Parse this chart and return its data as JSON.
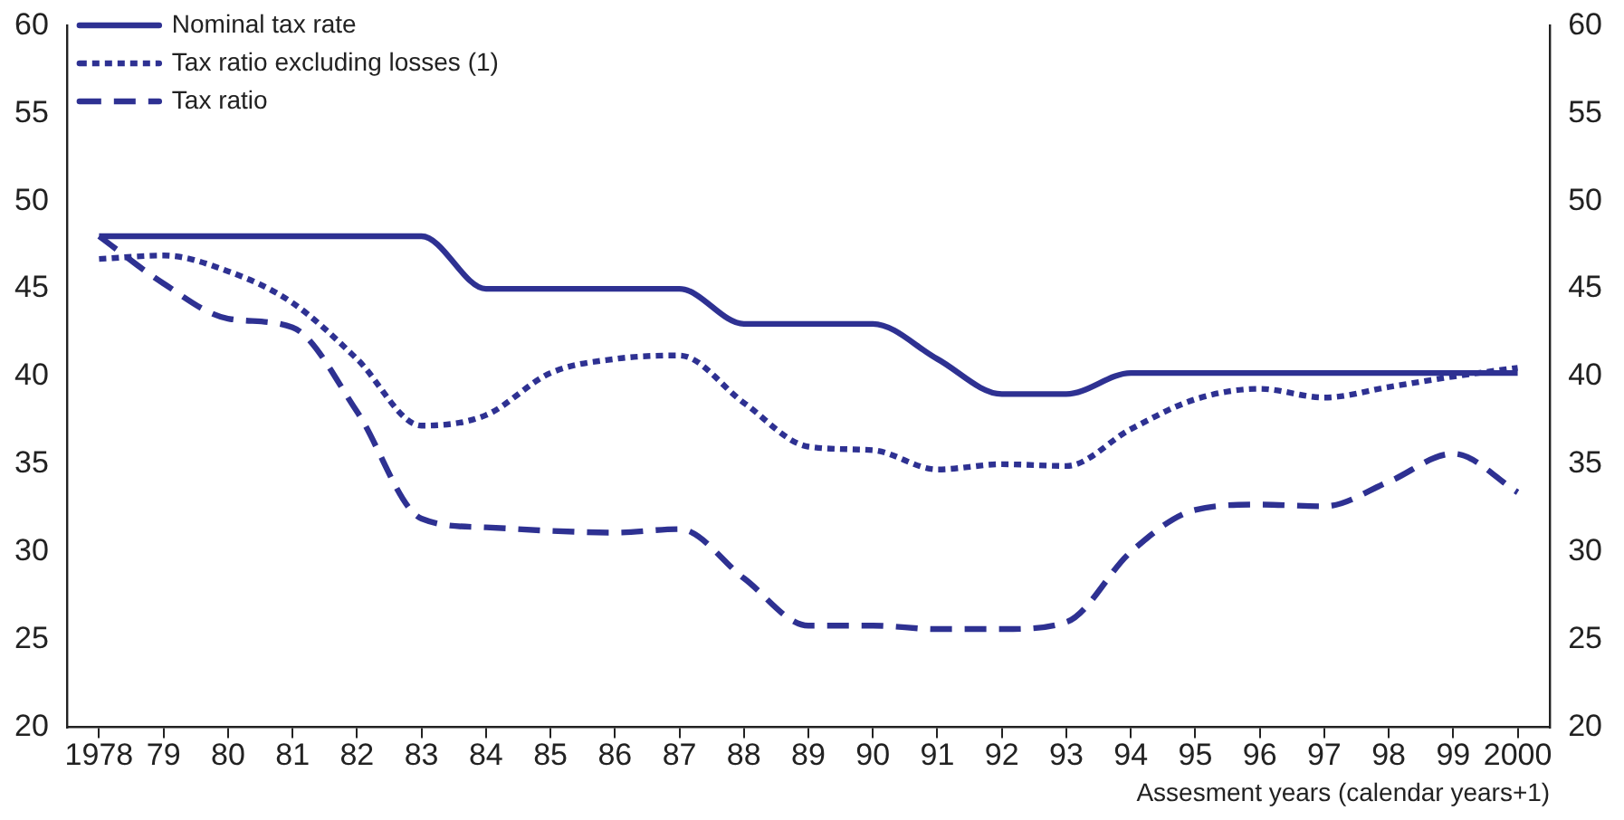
{
  "chart_data": {
    "type": "line",
    "xlabel": "Assesment years (calendar years+1)",
    "categories": [
      "1978",
      "79",
      "80",
      "81",
      "82",
      "83",
      "84",
      "85",
      "86",
      "87",
      "88",
      "89",
      "90",
      "91",
      "92",
      "93",
      "94",
      "95",
      "96",
      "97",
      "98",
      "99",
      "2000"
    ],
    "series": [
      {
        "name": "Nominal tax rate",
        "color": "#2e3192",
        "line_style": "solid",
        "values": [
          48,
          48,
          48,
          48,
          48,
          48,
          45,
          45,
          45,
          45,
          43,
          43,
          43,
          41,
          39,
          39,
          40.2,
          40.2,
          40.2,
          40.2,
          40.2,
          40.2,
          40.2
        ]
      },
      {
        "name": "Tax ratio excluding losses (1)",
        "color": "#2e3192",
        "line_style": "dotted",
        "values": [
          46.7,
          46.9,
          46,
          44.2,
          41,
          37.2,
          37.8,
          40.2,
          41,
          41.2,
          38.5,
          36,
          35.8,
          34.7,
          35,
          34.9,
          37,
          38.7,
          39.3,
          38.8,
          39.4,
          40,
          40.5
        ]
      },
      {
        "name": "Tax ratio",
        "color": "#2e3192",
        "line_style": "dashed",
        "values": [
          48,
          45.3,
          43.3,
          42.8,
          38,
          31.9,
          31.4,
          31.2,
          31.1,
          31.3,
          28.5,
          25.8,
          25.8,
          25.6,
          25.6,
          26,
          30,
          32.4,
          32.7,
          32.6,
          34,
          35.6,
          33.4
        ]
      }
    ],
    "ylim": [
      20,
      60
    ],
    "yticks": [
      20,
      25,
      30,
      35,
      40,
      45,
      50,
      55,
      60
    ],
    "y2lim": [
      20,
      60
    ],
    "y2ticks": [
      20,
      25,
      30,
      35,
      40,
      45,
      50,
      55,
      60
    ],
    "grid": false,
    "legend": "top left",
    "marker": "none"
  }
}
